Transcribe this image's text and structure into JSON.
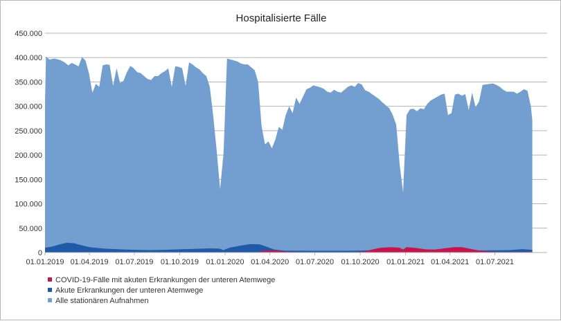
{
  "chart_data": {
    "type": "area",
    "title": "Hospitalisierte Fälle",
    "xlabel": "",
    "ylabel": "",
    "ylim": [
      0,
      450000
    ],
    "y_ticks": [
      "0",
      "50.000",
      "100.000",
      "150.000",
      "200.000",
      "250.000",
      "300.000",
      "350.000",
      "400.000",
      "450.000"
    ],
    "x_ticks": [
      "01.01.2019",
      "01.04.2019",
      "01.07.2019",
      "01.10.2019",
      "01.01.2020",
      "01.04.2020",
      "01.07.2020",
      "01.10.2020",
      "01.01.2021",
      "01.04.2021",
      "01.07.2021"
    ],
    "grid": true,
    "legend_position": "bottom-left",
    "x_range": [
      "2019-01-01",
      "2021-10-15"
    ],
    "series": [
      {
        "name": "Alle stationären Aufnahmen",
        "color": "#729fcf",
        "points": [
          [
            "2019-01-01",
            308000
          ],
          [
            "2019-01-03",
            402000
          ],
          [
            "2019-01-10",
            396000
          ],
          [
            "2019-01-20",
            398000
          ],
          [
            "2019-02-01",
            395000
          ],
          [
            "2019-02-10",
            390000
          ],
          [
            "2019-02-17",
            384000
          ],
          [
            "2019-02-24",
            389000
          ],
          [
            "2019-03-03",
            386000
          ],
          [
            "2019-03-10",
            382000
          ],
          [
            "2019-03-17",
            401000
          ],
          [
            "2019-03-24",
            394000
          ],
          [
            "2019-03-31",
            368000
          ],
          [
            "2019-04-07",
            328000
          ],
          [
            "2019-04-14",
            346000
          ],
          [
            "2019-04-21",
            340000
          ],
          [
            "2019-04-28",
            384000
          ],
          [
            "2019-05-05",
            386000
          ],
          [
            "2019-05-12",
            385000
          ],
          [
            "2019-05-19",
            342000
          ],
          [
            "2019-05-26",
            378000
          ],
          [
            "2019-06-02",
            348000
          ],
          [
            "2019-06-09",
            352000
          ],
          [
            "2019-06-16",
            370000
          ],
          [
            "2019-06-23",
            383000
          ],
          [
            "2019-06-30",
            378000
          ],
          [
            "2019-07-07",
            370000
          ],
          [
            "2019-07-14",
            368000
          ],
          [
            "2019-07-21",
            362000
          ],
          [
            "2019-07-28",
            356000
          ],
          [
            "2019-08-04",
            354000
          ],
          [
            "2019-08-11",
            362000
          ],
          [
            "2019-08-18",
            362000
          ],
          [
            "2019-08-25",
            368000
          ],
          [
            "2019-09-01",
            372000
          ],
          [
            "2019-09-08",
            378000
          ],
          [
            "2019-09-15",
            340000
          ],
          [
            "2019-09-22",
            382000
          ],
          [
            "2019-09-29",
            381000
          ],
          [
            "2019-10-06",
            378000
          ],
          [
            "2019-10-13",
            342000
          ],
          [
            "2019-10-20",
            390000
          ],
          [
            "2019-10-27",
            386000
          ],
          [
            "2019-11-03",
            380000
          ],
          [
            "2019-11-10",
            376000
          ],
          [
            "2019-11-17",
            368000
          ],
          [
            "2019-11-24",
            362000
          ],
          [
            "2019-12-01",
            340000
          ],
          [
            "2019-12-08",
            280000
          ],
          [
            "2019-12-15",
            210000
          ],
          [
            "2019-12-22",
            130000
          ],
          [
            "2019-12-29",
            205000
          ],
          [
            "2020-01-05",
            398000
          ],
          [
            "2020-01-12",
            396000
          ],
          [
            "2020-01-19",
            394000
          ],
          [
            "2020-01-26",
            392000
          ],
          [
            "2020-02-02",
            388000
          ],
          [
            "2020-02-09",
            386000
          ],
          [
            "2020-02-16",
            386000
          ],
          [
            "2020-02-23",
            380000
          ],
          [
            "2020-03-01",
            374000
          ],
          [
            "2020-03-08",
            350000
          ],
          [
            "2020-03-15",
            260000
          ],
          [
            "2020-03-22",
            222000
          ],
          [
            "2020-03-29",
            228000
          ],
          [
            "2020-04-05",
            214000
          ],
          [
            "2020-04-12",
            232000
          ],
          [
            "2020-04-19",
            258000
          ],
          [
            "2020-04-26",
            252000
          ],
          [
            "2020-05-03",
            282000
          ],
          [
            "2020-05-10",
            300000
          ],
          [
            "2020-05-17",
            286000
          ],
          [
            "2020-05-24",
            318000
          ],
          [
            "2020-05-31",
            305000
          ],
          [
            "2020-06-07",
            320000
          ],
          [
            "2020-06-14",
            335000
          ],
          [
            "2020-06-21",
            338000
          ],
          [
            "2020-06-28",
            343000
          ],
          [
            "2020-07-05",
            341000
          ],
          [
            "2020-07-12",
            339000
          ],
          [
            "2020-07-19",
            336000
          ],
          [
            "2020-07-26",
            330000
          ],
          [
            "2020-08-02",
            328000
          ],
          [
            "2020-08-09",
            334000
          ],
          [
            "2020-08-16",
            330000
          ],
          [
            "2020-08-23",
            328000
          ],
          [
            "2020-08-30",
            334000
          ],
          [
            "2020-09-06",
            340000
          ],
          [
            "2020-09-13",
            343000
          ],
          [
            "2020-09-20",
            340000
          ],
          [
            "2020-09-27",
            348000
          ],
          [
            "2020-10-04",
            345000
          ],
          [
            "2020-10-11",
            333000
          ],
          [
            "2020-10-18",
            330000
          ],
          [
            "2020-10-25",
            325000
          ],
          [
            "2020-11-01",
            320000
          ],
          [
            "2020-11-08",
            315000
          ],
          [
            "2020-11-15",
            308000
          ],
          [
            "2020-11-22",
            302000
          ],
          [
            "2020-11-29",
            296000
          ],
          [
            "2020-12-06",
            282000
          ],
          [
            "2020-12-13",
            262000
          ],
          [
            "2020-12-20",
            180000
          ],
          [
            "2020-12-27",
            124000
          ],
          [
            "2021-01-03",
            282000
          ],
          [
            "2021-01-10",
            294000
          ],
          [
            "2021-01-17",
            295000
          ],
          [
            "2021-01-24",
            290000
          ],
          [
            "2021-01-31",
            296000
          ],
          [
            "2021-02-07",
            294000
          ],
          [
            "2021-02-14",
            305000
          ],
          [
            "2021-02-21",
            312000
          ],
          [
            "2021-02-28",
            316000
          ],
          [
            "2021-03-07",
            320000
          ],
          [
            "2021-03-14",
            324000
          ],
          [
            "2021-03-21",
            326000
          ],
          [
            "2021-03-28",
            282000
          ],
          [
            "2021-04-04",
            286000
          ],
          [
            "2021-04-11",
            324000
          ],
          [
            "2021-04-18",
            326000
          ],
          [
            "2021-04-25",
            322000
          ],
          [
            "2021-05-02",
            325000
          ],
          [
            "2021-05-09",
            292000
          ],
          [
            "2021-05-16",
            328000
          ],
          [
            "2021-05-23",
            298000
          ],
          [
            "2021-05-30",
            310000
          ],
          [
            "2021-06-06",
            344000
          ],
          [
            "2021-06-13",
            345000
          ],
          [
            "2021-06-20",
            346000
          ],
          [
            "2021-06-27",
            347000
          ],
          [
            "2021-07-04",
            344000
          ],
          [
            "2021-07-11",
            340000
          ],
          [
            "2021-07-18",
            334000
          ],
          [
            "2021-07-25",
            330000
          ],
          [
            "2021-08-01",
            330000
          ],
          [
            "2021-08-08",
            330000
          ],
          [
            "2021-08-15",
            326000
          ],
          [
            "2021-08-22",
            330000
          ],
          [
            "2021-08-29",
            335000
          ],
          [
            "2021-09-05",
            332000
          ],
          [
            "2021-09-12",
            300000
          ],
          [
            "2021-09-15",
            272000
          ]
        ]
      },
      {
        "name": "Akute Erkrankungen der unteren Atemwege",
        "color": "#1f5aa8",
        "points": [
          [
            "2019-01-01",
            10000
          ],
          [
            "2019-01-15",
            12000
          ],
          [
            "2019-02-01",
            17000
          ],
          [
            "2019-02-15",
            20000
          ],
          [
            "2019-03-01",
            19000
          ],
          [
            "2019-03-15",
            15000
          ],
          [
            "2019-04-01",
            11000
          ],
          [
            "2019-05-01",
            8000
          ],
          [
            "2019-06-01",
            6500
          ],
          [
            "2019-07-01",
            5500
          ],
          [
            "2019-08-01",
            5000
          ],
          [
            "2019-09-01",
            5500
          ],
          [
            "2019-10-01",
            6500
          ],
          [
            "2019-11-01",
            7500
          ],
          [
            "2019-12-01",
            8500
          ],
          [
            "2019-12-20",
            8000
          ],
          [
            "2019-12-29",
            5000
          ],
          [
            "2020-01-10",
            10000
          ],
          [
            "2020-02-01",
            14000
          ],
          [
            "2020-02-20",
            17000
          ],
          [
            "2020-03-10",
            17000
          ],
          [
            "2020-03-25",
            12000
          ],
          [
            "2020-04-10",
            6000
          ],
          [
            "2020-05-01",
            4000
          ],
          [
            "2020-07-01",
            3500
          ],
          [
            "2020-09-01",
            3500
          ],
          [
            "2020-10-01",
            4000
          ],
          [
            "2020-11-01",
            5000
          ],
          [
            "2020-12-01",
            5500
          ],
          [
            "2021-01-01",
            5000
          ],
          [
            "2021-03-01",
            4000
          ],
          [
            "2021-05-01",
            4000
          ],
          [
            "2021-07-01",
            4500
          ],
          [
            "2021-08-01",
            5000
          ],
          [
            "2021-08-25",
            7000
          ],
          [
            "2021-09-15",
            5500
          ]
        ]
      },
      {
        "name": "COVID-19-Fälle mit akuten Erkrankungen der unteren Atemwege",
        "color": "#c9134a",
        "points": [
          [
            "2019-01-01",
            0
          ],
          [
            "2020-03-05",
            0
          ],
          [
            "2020-03-20",
            3500
          ],
          [
            "2020-04-10",
            4500
          ],
          [
            "2020-05-05",
            1500
          ],
          [
            "2020-06-01",
            500
          ],
          [
            "2020-09-15",
            500
          ],
          [
            "2020-10-10",
            2000
          ],
          [
            "2020-10-25",
            6000
          ],
          [
            "2020-11-10",
            9500
          ],
          [
            "2020-12-01",
            11000
          ],
          [
            "2020-12-20",
            10000
          ],
          [
            "2020-12-27",
            6000
          ],
          [
            "2021-01-03",
            11000
          ],
          [
            "2021-01-20",
            9500
          ],
          [
            "2021-02-10",
            6500
          ],
          [
            "2021-03-01",
            6000
          ],
          [
            "2021-03-20",
            8500
          ],
          [
            "2021-04-10",
            11000
          ],
          [
            "2021-04-25",
            11000
          ],
          [
            "2021-05-15",
            7000
          ],
          [
            "2021-06-05",
            3000
          ],
          [
            "2021-07-01",
            1000
          ],
          [
            "2021-08-01",
            1000
          ],
          [
            "2021-09-15",
            1500
          ]
        ]
      }
    ]
  }
}
